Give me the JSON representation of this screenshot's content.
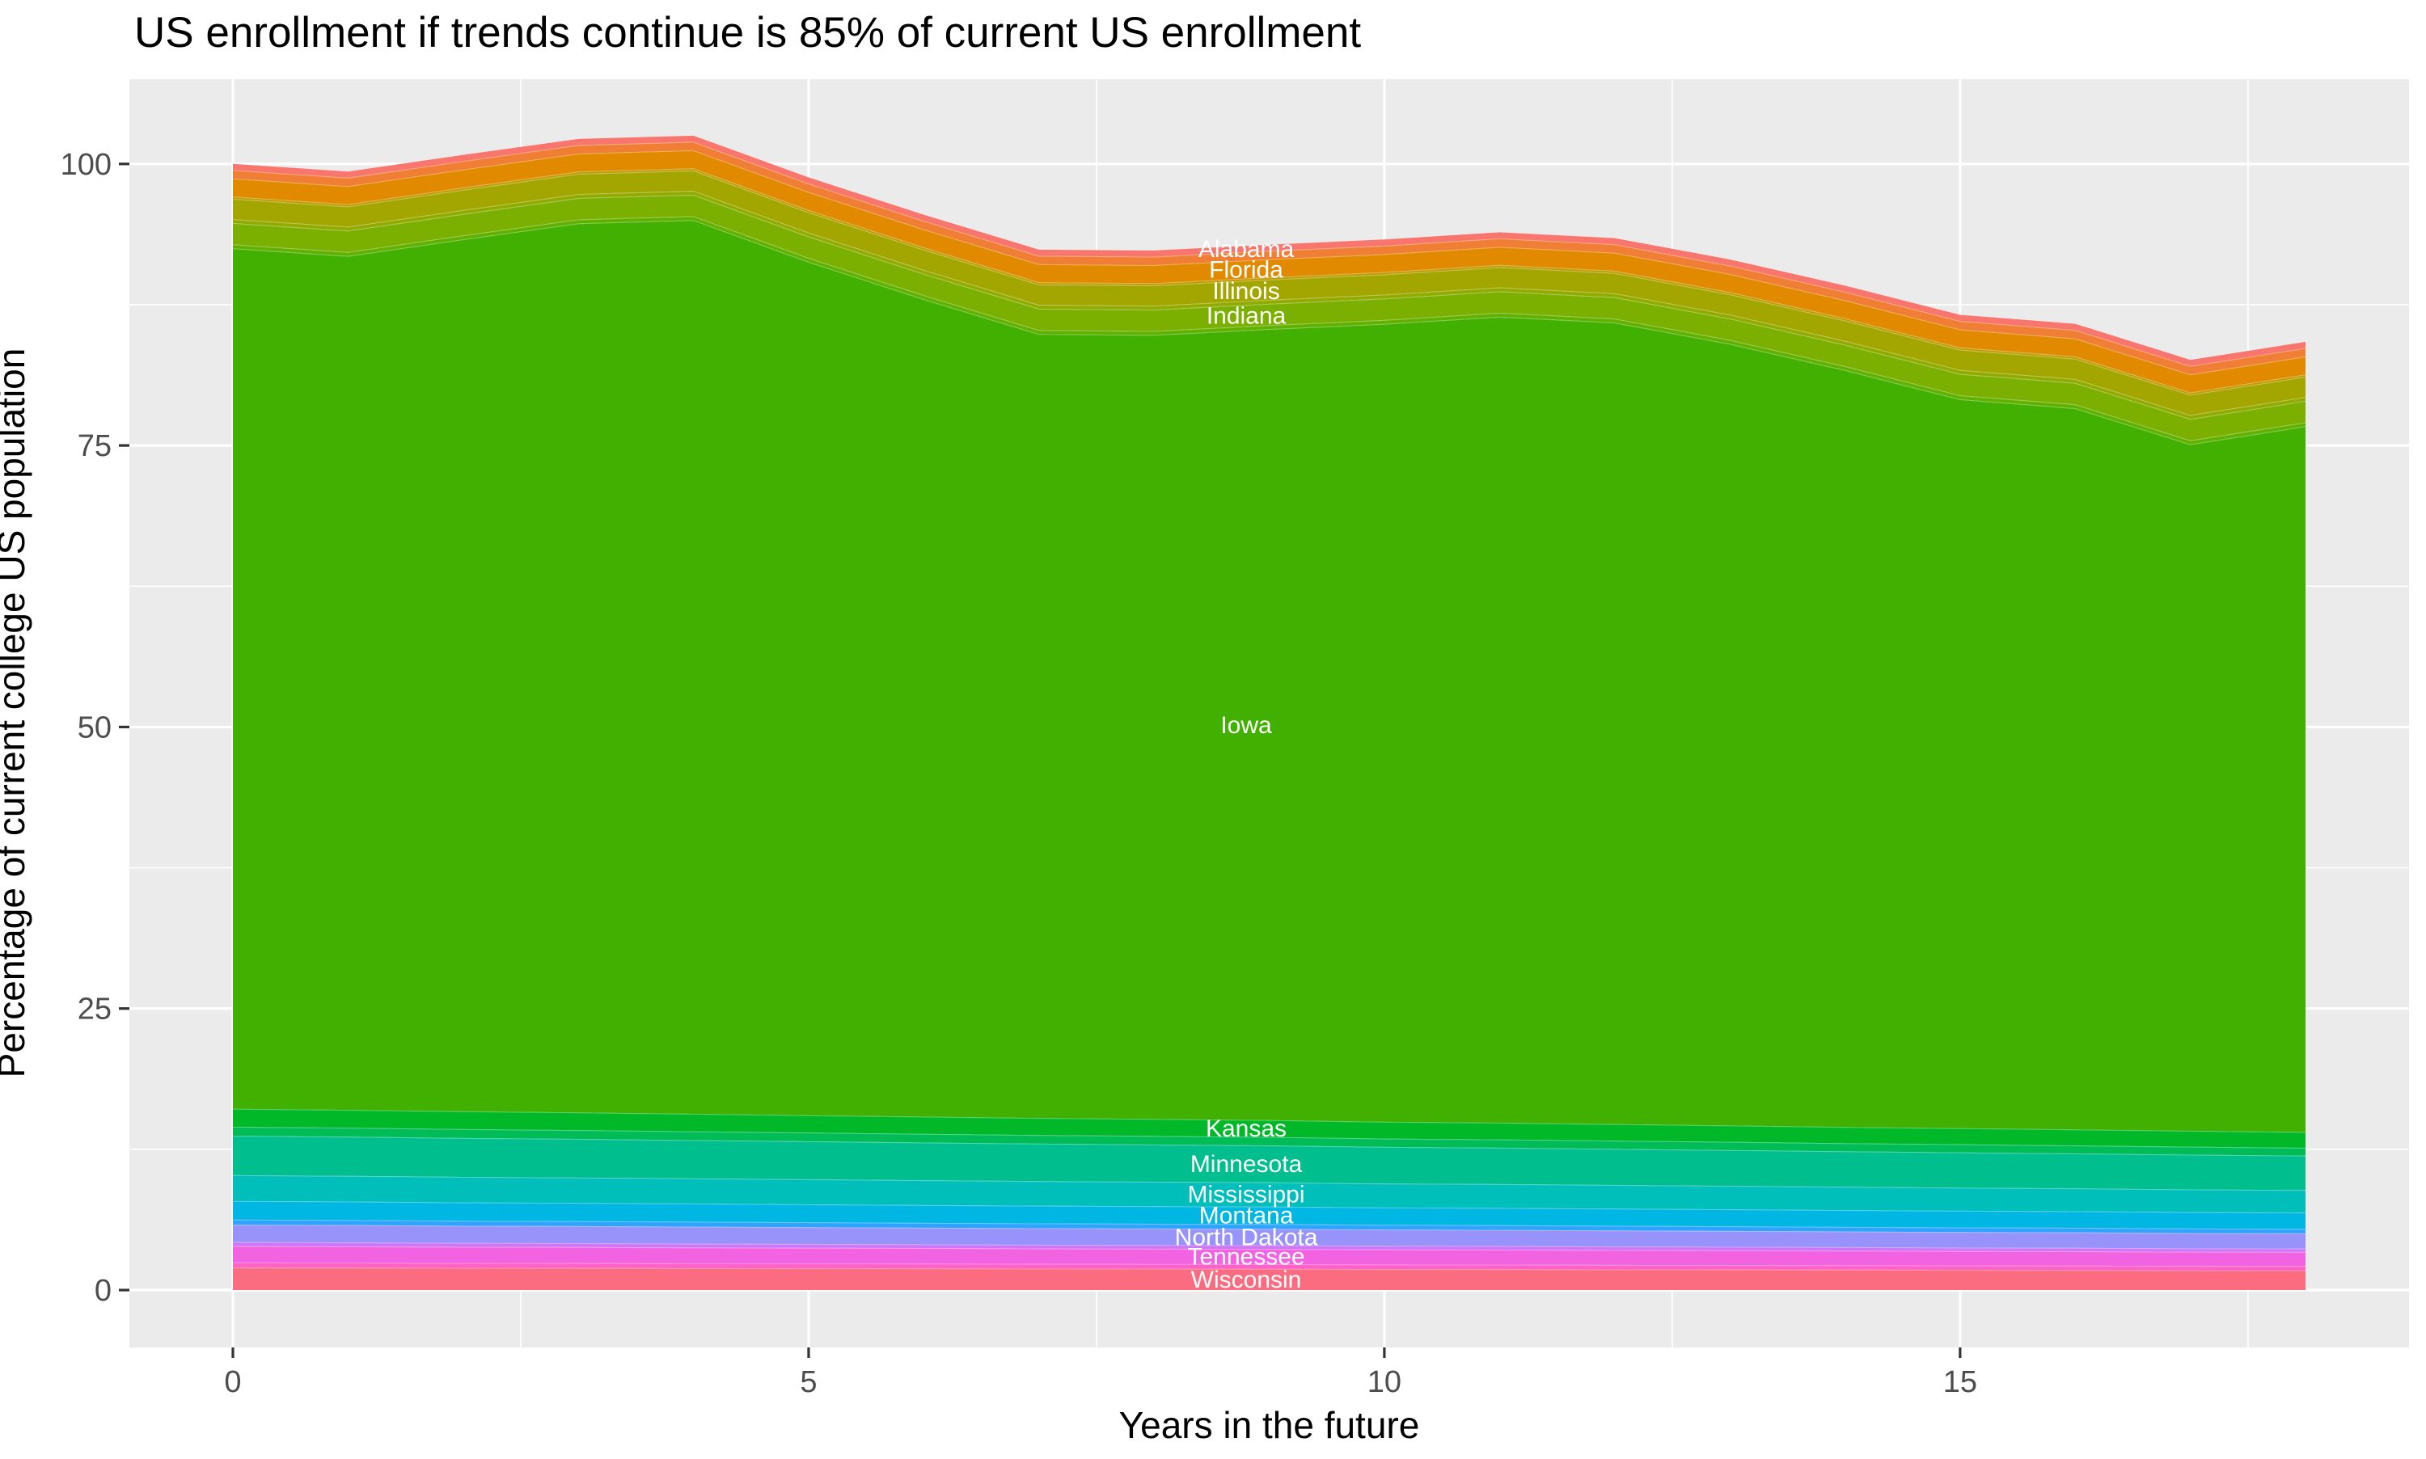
{
  "title": "US enrollment if trends continue is 85% of current US enrollment",
  "axes": {
    "x": {
      "label": "Years in the future",
      "major_ticks": [
        0,
        5,
        10,
        15
      ],
      "minor_ticks": [
        2.5,
        7.5,
        12.5,
        17.5
      ],
      "range": [
        -0.9,
        18.9
      ]
    },
    "y": {
      "label": "Percentage of current college US population",
      "major_ticks": [
        0,
        25,
        50,
        75,
        100
      ],
      "minor_ticks": [
        12.5,
        37.5,
        62.5,
        87.5
      ],
      "range": [
        -5.1,
        107.6
      ]
    }
  },
  "colors": {
    "panel_background": "#EBEBEB",
    "major_gridline": "#FFFFFF",
    "minor_gridline": "#FFFFFF",
    "tick_mark": "#333333",
    "tick_label": "#4D4D4D",
    "title_text": "#000000",
    "area_label_text": "#FFFFFF",
    "band_separator": "rgba(255,255,255,0.32)"
  },
  "chart_data": {
    "type": "area",
    "stacked": true,
    "title": "US enrollment if trends continue is 85% of current US enrollment",
    "xlabel": "Years in the future",
    "ylabel": "Percentage of current college US population",
    "grid": true,
    "legend": false,
    "label_x": 8.8,
    "x": [
      0,
      1,
      2,
      3,
      4,
      5,
      6,
      7,
      8,
      9,
      10,
      11,
      12,
      13,
      14,
      15,
      16,
      17,
      18
    ],
    "stack_top_total": [
      100,
      99.3,
      100.8,
      102.2,
      102.5,
      98.8,
      95.5,
      92.3,
      92.3,
      92.8,
      93.3,
      93.9,
      93.4,
      91.5,
      89.2,
      86.6,
      85.8,
      82.6,
      84.2
    ],
    "series": [
      {
        "name": "Wisconsin",
        "labeled": true,
        "color": "#FC6C80",
        "values": [
          2.0,
          1.99,
          1.97,
          1.96,
          1.94,
          1.93,
          1.92,
          1.9,
          1.89,
          1.88,
          1.86,
          1.85,
          1.83,
          1.82,
          1.81,
          1.79,
          1.78,
          1.76,
          1.75
        ]
      },
      {
        "name": "other-states-a",
        "labeled": false,
        "color": "#FF61C8",
        "values": [
          0.45,
          0.45,
          0.44,
          0.44,
          0.43,
          0.43,
          0.43,
          0.42,
          0.42,
          0.42,
          0.41,
          0.41,
          0.4,
          0.4,
          0.4,
          0.39,
          0.39,
          0.38,
          0.38
        ]
      },
      {
        "name": "Tennessee",
        "labeled": true,
        "color": "#F263E2",
        "values": [
          1.45,
          1.44,
          1.43,
          1.42,
          1.41,
          1.39,
          1.38,
          1.37,
          1.36,
          1.35,
          1.34,
          1.33,
          1.32,
          1.31,
          1.29,
          1.28,
          1.27,
          1.26,
          1.25
        ]
      },
      {
        "name": "other-states-b",
        "labeled": false,
        "color": "#CC77F7",
        "values": [
          0.35,
          0.35,
          0.34,
          0.34,
          0.34,
          0.34,
          0.33,
          0.33,
          0.33,
          0.33,
          0.32,
          0.32,
          0.32,
          0.31,
          0.31,
          0.31,
          0.31,
          0.3,
          0.3
        ]
      },
      {
        "name": "North Dakota",
        "labeled": true,
        "color": "#9793FB",
        "values": [
          1.55,
          1.54,
          1.53,
          1.52,
          1.51,
          1.49,
          1.48,
          1.47,
          1.46,
          1.45,
          1.44,
          1.43,
          1.42,
          1.41,
          1.39,
          1.38,
          1.37,
          1.36,
          1.35
        ]
      },
      {
        "name": "other-states-c",
        "labeled": false,
        "color": "#2DA4FD",
        "values": [
          0.45,
          0.45,
          0.44,
          0.44,
          0.44,
          0.44,
          0.43,
          0.43,
          0.43,
          0.43,
          0.42,
          0.42,
          0.42,
          0.41,
          0.41,
          0.41,
          0.41,
          0.4,
          0.4
        ]
      },
      {
        "name": "Montana",
        "labeled": true,
        "color": "#00B7E4",
        "values": [
          1.65,
          1.64,
          1.63,
          1.62,
          1.61,
          1.59,
          1.58,
          1.57,
          1.56,
          1.55,
          1.54,
          1.53,
          1.52,
          1.51,
          1.49,
          1.48,
          1.47,
          1.46,
          1.45
        ]
      },
      {
        "name": "Mississippi",
        "labeled": true,
        "color": "#00BFBB",
        "values": [
          2.3,
          2.28,
          2.27,
          2.25,
          2.23,
          2.22,
          2.2,
          2.18,
          2.17,
          2.15,
          2.13,
          2.12,
          2.1,
          2.08,
          2.07,
          2.05,
          2.03,
          2.02,
          2.0
        ]
      },
      {
        "name": "Minnesota",
        "labeled": true,
        "color": "#00BE8E",
        "values": [
          3.5,
          3.48,
          3.45,
          3.43,
          3.4,
          3.38,
          3.35,
          3.33,
          3.3,
          3.28,
          3.25,
          3.23,
          3.2,
          3.18,
          3.15,
          3.13,
          3.1,
          3.08,
          3.05
        ]
      },
      {
        "name": "other-states-d",
        "labeled": false,
        "color": "#00BC57",
        "values": [
          0.8,
          0.79,
          0.79,
          0.78,
          0.78,
          0.77,
          0.77,
          0.76,
          0.76,
          0.75,
          0.74,
          0.74,
          0.73,
          0.73,
          0.72,
          0.72,
          0.71,
          0.71,
          0.7
        ]
      },
      {
        "name": "Kansas",
        "labeled": true,
        "color": "#00B828",
        "values": [
          1.6,
          1.59,
          1.58,
          1.57,
          1.56,
          1.54,
          1.53,
          1.52,
          1.51,
          1.5,
          1.49,
          1.48,
          1.47,
          1.46,
          1.44,
          1.43,
          1.42,
          1.41,
          1.4
        ]
      },
      {
        "name": "Iowa",
        "labeled": true,
        "color": "#42B000",
        "values": [
          76.4,
          75.82,
          77.43,
          78.95,
          79.36,
          75.78,
          72.59,
          69.61,
          69.62,
          70.24,
          70.85,
          71.57,
          71.18,
          69.4,
          67.21,
          64.73,
          64.04,
          60.96,
          62.67
        ]
      },
      {
        "name": "other-states-e",
        "labeled": false,
        "color": "#62B100",
        "values": [
          0.35,
          0.35,
          0.35,
          0.35,
          0.35,
          0.35,
          0.35,
          0.35,
          0.35,
          0.35,
          0.35,
          0.35,
          0.35,
          0.35,
          0.35,
          0.35,
          0.35,
          0.35,
          0.35
        ]
      },
      {
        "name": "Indiana",
        "labeled": true,
        "color": "#7BB000",
        "values": [
          1.9,
          1.9,
          1.9,
          1.9,
          1.9,
          1.9,
          1.9,
          1.9,
          1.9,
          1.9,
          1.9,
          1.9,
          1.9,
          1.9,
          1.9,
          1.9,
          1.9,
          1.9,
          1.9
        ]
      },
      {
        "name": "other-states-f",
        "labeled": false,
        "color": "#93AB00",
        "values": [
          0.35,
          0.35,
          0.35,
          0.35,
          0.35,
          0.35,
          0.35,
          0.35,
          0.35,
          0.35,
          0.35,
          0.35,
          0.35,
          0.35,
          0.35,
          0.35,
          0.35,
          0.35,
          0.35
        ]
      },
      {
        "name": "Illinois",
        "labeled": true,
        "color": "#A4A600",
        "values": [
          1.8,
          1.8,
          1.8,
          1.8,
          1.8,
          1.8,
          1.8,
          1.8,
          1.8,
          1.8,
          1.8,
          1.8,
          1.8,
          1.8,
          1.8,
          1.8,
          1.8,
          1.8,
          1.8
        ]
      },
      {
        "name": "other-states-g",
        "labeled": false,
        "color": "#C29A00",
        "values": [
          0.2,
          0.2,
          0.2,
          0.2,
          0.2,
          0.2,
          0.2,
          0.2,
          0.2,
          0.2,
          0.2,
          0.2,
          0.2,
          0.2,
          0.2,
          0.2,
          0.2,
          0.2,
          0.2
        ]
      },
      {
        "name": "Florida",
        "labeled": true,
        "color": "#E18A00",
        "values": [
          1.6,
          1.6,
          1.6,
          1.6,
          1.6,
          1.6,
          1.6,
          1.6,
          1.6,
          1.6,
          1.6,
          1.6,
          1.6,
          1.6,
          1.6,
          1.6,
          1.6,
          1.6,
          1.6
        ]
      },
      {
        "name": "other-states-h",
        "labeled": false,
        "color": "#F07E35",
        "values": [
          0.75,
          0.75,
          0.75,
          0.75,
          0.75,
          0.75,
          0.75,
          0.75,
          0.75,
          0.75,
          0.75,
          0.75,
          0.75,
          0.75,
          0.75,
          0.75,
          0.75,
          0.75,
          0.75
        ]
      },
      {
        "name": "Alabama",
        "labeled": true,
        "color": "#F8766D",
        "values": [
          0.55,
          0.55,
          0.55,
          0.55,
          0.55,
          0.55,
          0.55,
          0.55,
          0.55,
          0.55,
          0.55,
          0.55,
          0.55,
          0.55,
          0.55,
          0.55,
          0.55,
          0.55,
          0.55
        ]
      }
    ]
  }
}
